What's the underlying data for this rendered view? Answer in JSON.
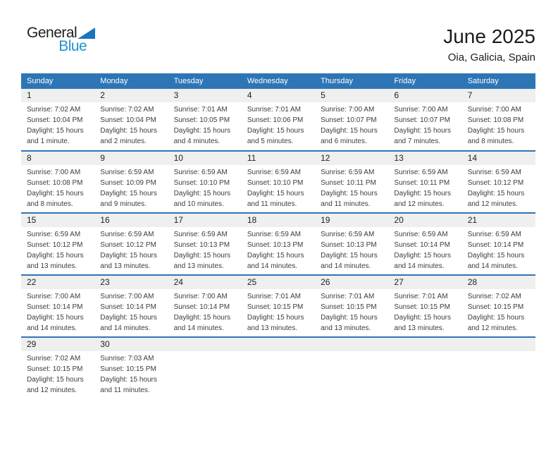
{
  "logo": {
    "word1": "General",
    "word2": "Blue"
  },
  "page_header": {
    "title": "June 2025",
    "location": "Oia, Galicia, Spain"
  },
  "colors": {
    "header_blue": "#2e75b6",
    "row_separator_blue": "#2e75b6",
    "day_band_gray": "#efefef",
    "brand_text_blue": "#2093d3",
    "brand_triangle_blue": "#1b74bc"
  },
  "calendar": {
    "weekdays": [
      "Sunday",
      "Monday",
      "Tuesday",
      "Wednesday",
      "Thursday",
      "Friday",
      "Saturday"
    ],
    "labels": {
      "sunrise": "Sunrise:",
      "sunset": "Sunset:",
      "daylight": "Daylight:"
    },
    "weeks": [
      [
        {
          "day": 1,
          "sunrise": "7:02 AM",
          "sunset": "10:04 PM",
          "daylight": "15 hours and 1 minute."
        },
        {
          "day": 2,
          "sunrise": "7:02 AM",
          "sunset": "10:04 PM",
          "daylight": "15 hours and 2 minutes."
        },
        {
          "day": 3,
          "sunrise": "7:01 AM",
          "sunset": "10:05 PM",
          "daylight": "15 hours and 4 minutes."
        },
        {
          "day": 4,
          "sunrise": "7:01 AM",
          "sunset": "10:06 PM",
          "daylight": "15 hours and 5 minutes."
        },
        {
          "day": 5,
          "sunrise": "7:00 AM",
          "sunset": "10:07 PM",
          "daylight": "15 hours and 6 minutes."
        },
        {
          "day": 6,
          "sunrise": "7:00 AM",
          "sunset": "10:07 PM",
          "daylight": "15 hours and 7 minutes."
        },
        {
          "day": 7,
          "sunrise": "7:00 AM",
          "sunset": "10:08 PM",
          "daylight": "15 hours and 8 minutes."
        }
      ],
      [
        {
          "day": 8,
          "sunrise": "7:00 AM",
          "sunset": "10:08 PM",
          "daylight": "15 hours and 8 minutes."
        },
        {
          "day": 9,
          "sunrise": "6:59 AM",
          "sunset": "10:09 PM",
          "daylight": "15 hours and 9 minutes."
        },
        {
          "day": 10,
          "sunrise": "6:59 AM",
          "sunset": "10:10 PM",
          "daylight": "15 hours and 10 minutes."
        },
        {
          "day": 11,
          "sunrise": "6:59 AM",
          "sunset": "10:10 PM",
          "daylight": "15 hours and 11 minutes."
        },
        {
          "day": 12,
          "sunrise": "6:59 AM",
          "sunset": "10:11 PM",
          "daylight": "15 hours and 11 minutes."
        },
        {
          "day": 13,
          "sunrise": "6:59 AM",
          "sunset": "10:11 PM",
          "daylight": "15 hours and 12 minutes."
        },
        {
          "day": 14,
          "sunrise": "6:59 AM",
          "sunset": "10:12 PM",
          "daylight": "15 hours and 12 minutes."
        }
      ],
      [
        {
          "day": 15,
          "sunrise": "6:59 AM",
          "sunset": "10:12 PM",
          "daylight": "15 hours and 13 minutes."
        },
        {
          "day": 16,
          "sunrise": "6:59 AM",
          "sunset": "10:12 PM",
          "daylight": "15 hours and 13 minutes."
        },
        {
          "day": 17,
          "sunrise": "6:59 AM",
          "sunset": "10:13 PM",
          "daylight": "15 hours and 13 minutes."
        },
        {
          "day": 18,
          "sunrise": "6:59 AM",
          "sunset": "10:13 PM",
          "daylight": "15 hours and 14 minutes."
        },
        {
          "day": 19,
          "sunrise": "6:59 AM",
          "sunset": "10:13 PM",
          "daylight": "15 hours and 14 minutes."
        },
        {
          "day": 20,
          "sunrise": "6:59 AM",
          "sunset": "10:14 PM",
          "daylight": "15 hours and 14 minutes."
        },
        {
          "day": 21,
          "sunrise": "6:59 AM",
          "sunset": "10:14 PM",
          "daylight": "15 hours and 14 minutes."
        }
      ],
      [
        {
          "day": 22,
          "sunrise": "7:00 AM",
          "sunset": "10:14 PM",
          "daylight": "15 hours and 14 minutes."
        },
        {
          "day": 23,
          "sunrise": "7:00 AM",
          "sunset": "10:14 PM",
          "daylight": "15 hours and 14 minutes."
        },
        {
          "day": 24,
          "sunrise": "7:00 AM",
          "sunset": "10:14 PM",
          "daylight": "15 hours and 14 minutes."
        },
        {
          "day": 25,
          "sunrise": "7:01 AM",
          "sunset": "10:15 PM",
          "daylight": "15 hours and 13 minutes."
        },
        {
          "day": 26,
          "sunrise": "7:01 AM",
          "sunset": "10:15 PM",
          "daylight": "15 hours and 13 minutes."
        },
        {
          "day": 27,
          "sunrise": "7:01 AM",
          "sunset": "10:15 PM",
          "daylight": "15 hours and 13 minutes."
        },
        {
          "day": 28,
          "sunrise": "7:02 AM",
          "sunset": "10:15 PM",
          "daylight": "15 hours and 12 minutes."
        }
      ],
      [
        {
          "day": 29,
          "sunrise": "7:02 AM",
          "sunset": "10:15 PM",
          "daylight": "15 hours and 12 minutes."
        },
        {
          "day": 30,
          "sunrise": "7:03 AM",
          "sunset": "10:15 PM",
          "daylight": "15 hours and 11 minutes."
        },
        null,
        null,
        null,
        null,
        null
      ]
    ]
  }
}
